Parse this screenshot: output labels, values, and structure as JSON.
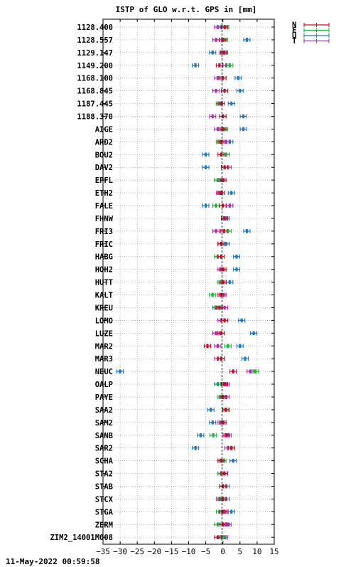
{
  "chart_data": {
    "type": "scatter",
    "title": "ISTP of GLO w.r.t. GPS in [mm]",
    "xlim": [
      -35,
      15
    ],
    "xticks": [
      -35,
      -30,
      -25,
      -20,
      -15,
      -10,
      -5,
      0,
      5,
      10,
      15
    ],
    "grid": true,
    "legend_position": "top-right",
    "timestamp": "11-May-2022 00:59:58",
    "categories": [
      "1128.400",
      "1128.557",
      "1129.147",
      "1149.200",
      "1168.100",
      "1168.845",
      "1187.445",
      "1188.370",
      "AIGE",
      "ARD2",
      "BOU2",
      "DAV2",
      "EPFL",
      "ETH2",
      "FALE",
      "FHNW",
      "FRI3",
      "FRIC",
      "HABG",
      "HOH2",
      "HUTT",
      "KALT",
      "KREU",
      "LOMO",
      "LUZE",
      "MAR2",
      "MAR3",
      "NEUC",
      "OALP",
      "PAYE",
      "SAA2",
      "SAM2",
      "SANB",
      "SAR2",
      "SCHA",
      "STA2",
      "STAB",
      "STCX",
      "STGA",
      "ZERM",
      "ZIM2_14001M008"
    ],
    "series": [
      {
        "name": "N",
        "color": "#c8102e",
        "values": [
          0.5,
          0.0,
          0.3,
          -1.0,
          0.0,
          0.5,
          -0.5,
          0.0,
          0.0,
          -0.5,
          -0.5,
          0.5,
          0.0,
          -0.5,
          0.0,
          0.5,
          0.3,
          -0.5,
          -0.5,
          0.0,
          0.0,
          -0.5,
          -1.0,
          0.5,
          -0.5,
          -4.5,
          -0.5,
          3.0,
          0.5,
          0.0,
          0.8,
          0.0,
          1.0,
          2.5,
          -0.5,
          0.3,
          0.0,
          0.0,
          0.0,
          0.0,
          -1.5
        ]
      },
      {
        "name": "E",
        "color": "#1db33a",
        "values": [
          0.8,
          0.5,
          0.5,
          2.0,
          0.0,
          0.5,
          -1.0,
          0.0,
          0.5,
          -1.0,
          1.0,
          0.5,
          -1.5,
          -0.5,
          -2.0,
          0.5,
          1.5,
          -0.5,
          -1.5,
          0.0,
          -0.5,
          -3.0,
          -1.5,
          0.5,
          -0.5,
          1.5,
          -0.5,
          9.5,
          -0.5,
          -0.5,
          1.0,
          0.0,
          -2.8,
          2.5,
          0.0,
          -0.5,
          0.0,
          -0.5,
          -1.0,
          -1.5,
          0.0
        ]
      },
      {
        "name": "U",
        "color": "#2277c0",
        "values": [
          -0.5,
          7.0,
          -3.0,
          -8.0,
          4.5,
          5.0,
          2.5,
          6.0,
          6.0,
          2.0,
          -5.0,
          -5.0,
          -1.5,
          2.5,
          -5.0,
          1.0,
          7.0,
          1.0,
          4.0,
          4.0,
          2.0,
          0.0,
          -2.0,
          5.5,
          9.0,
          5.0,
          6.5,
          -30.0,
          -1.5,
          0.0,
          -3.5,
          -3.0,
          -6.5,
          -8.0,
          3.0,
          -0.5,
          1.0,
          1.0,
          2.5,
          1.0,
          0.0
        ]
      },
      {
        "name": "T",
        "color": "#b52ab5",
        "values": [
          -1.5,
          -2.0,
          0.0,
          1.0,
          -1.5,
          -2.0,
          -1.0,
          -3.0,
          -1.5,
          1.0,
          1.0,
          1.5,
          -0.5,
          -1.0,
          2.0,
          0.5,
          -2.0,
          -0.5,
          -1.5,
          -0.5,
          -0.5,
          0.0,
          0.5,
          -0.5,
          -2.0,
          -1.5,
          -1.5,
          8.0,
          1.0,
          1.0,
          0.8,
          -0.5,
          1.5,
          1.5,
          -0.5,
          0.5,
          0.0,
          -1.0,
          0.5,
          1.5,
          0.5
        ]
      }
    ]
  }
}
